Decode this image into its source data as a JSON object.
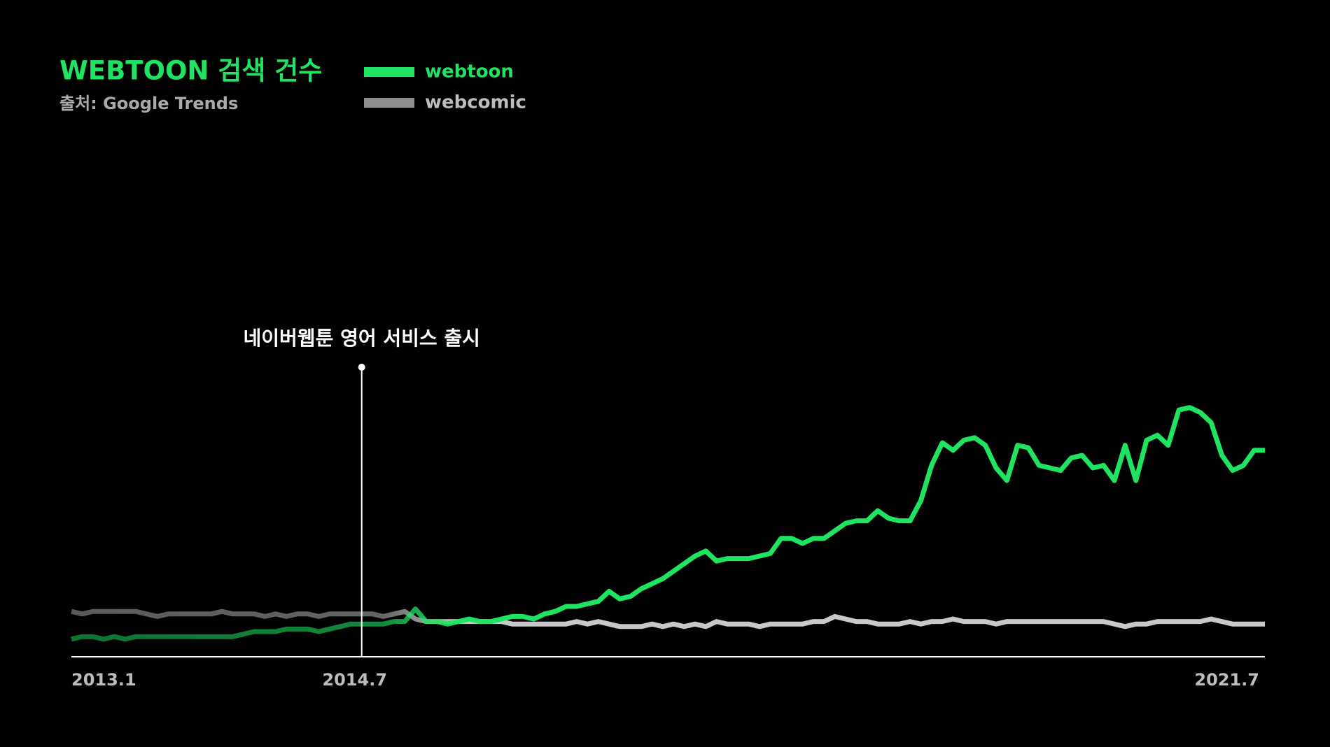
{
  "chart_data": {
    "type": "line",
    "title": "WEBTOON 검색 건수",
    "subtitle": "출처: Google Trends",
    "annotation": "네이버웹툰 영어 서비스 출시",
    "categories": [
      "2013.1",
      null,
      null,
      null,
      null,
      null,
      null,
      null,
      null,
      null,
      null,
      null,
      null,
      null,
      null,
      null,
      null,
      null,
      null,
      null,
      null,
      null,
      null,
      null,
      null,
      null,
      null,
      "2014.7",
      null,
      null,
      null,
      null,
      null,
      null,
      null,
      null,
      null,
      null,
      null,
      null,
      null,
      null,
      null,
      null,
      null,
      null,
      null,
      null,
      null,
      null,
      null,
      null,
      null,
      null,
      null,
      null,
      null,
      null,
      null,
      null,
      null,
      null,
      null,
      null,
      null,
      null,
      null,
      null,
      null,
      null,
      null,
      null,
      null,
      null,
      null,
      null,
      null,
      null,
      null,
      null,
      null,
      null,
      null,
      null,
      null,
      null,
      null,
      null,
      null,
      null,
      null,
      null,
      null,
      null,
      null,
      null,
      null,
      null,
      null,
      null,
      null,
      null,
      null,
      null,
      null,
      null,
      null,
      null,
      null,
      null,
      null,
      "2021.7"
    ],
    "series": [
      {
        "name": "webtoon",
        "color": "#1ee462",
        "values": [
          7,
          8,
          8,
          7,
          8,
          7,
          8,
          8,
          8,
          8,
          8,
          8,
          8,
          8,
          8,
          8,
          9,
          10,
          10,
          10,
          11,
          11,
          11,
          10,
          11,
          12,
          13,
          13,
          13,
          13,
          14,
          14,
          19,
          14,
          14,
          13,
          14,
          15,
          14,
          14,
          15,
          16,
          16,
          15,
          17,
          18,
          20,
          20,
          21,
          22,
          26,
          23,
          24,
          27,
          29,
          31,
          34,
          37,
          40,
          42,
          38,
          39,
          39,
          39,
          40,
          41,
          47,
          47,
          45,
          47,
          47,
          50,
          53,
          54,
          54,
          58,
          55,
          54,
          54,
          62,
          76,
          85,
          82,
          86,
          87,
          84,
          75,
          70,
          84,
          83,
          76,
          75,
          74,
          79,
          80,
          75,
          76,
          70,
          84,
          70,
          86,
          88,
          84,
          98,
          99,
          97,
          93,
          80,
          74,
          76,
          82,
          82
        ]
      },
      {
        "name": "webcomic",
        "color": "#c8c8c8",
        "values": [
          18,
          17,
          18,
          18,
          18,
          18,
          18,
          17,
          16,
          17,
          17,
          17,
          17,
          17,
          18,
          17,
          17,
          17,
          16,
          17,
          16,
          17,
          17,
          16,
          17,
          17,
          17,
          17,
          17,
          16,
          17,
          18,
          15,
          14,
          14,
          14,
          14,
          14,
          14,
          14,
          14,
          13,
          13,
          13,
          13,
          13,
          13,
          14,
          13,
          14,
          13,
          12,
          12,
          12,
          13,
          12,
          13,
          12,
          13,
          12,
          14,
          13,
          13,
          13,
          12,
          13,
          13,
          13,
          13,
          14,
          14,
          16,
          15,
          14,
          14,
          13,
          13,
          13,
          14,
          13,
          14,
          14,
          15,
          14,
          14,
          14,
          13,
          14,
          14,
          14,
          14,
          14,
          14,
          14,
          14,
          14,
          14,
          13,
          12,
          13,
          13,
          14,
          14,
          14,
          14,
          14,
          15,
          14,
          13,
          13,
          13,
          13
        ]
      }
    ],
    "ylim": [
      0,
      100
    ]
  }
}
